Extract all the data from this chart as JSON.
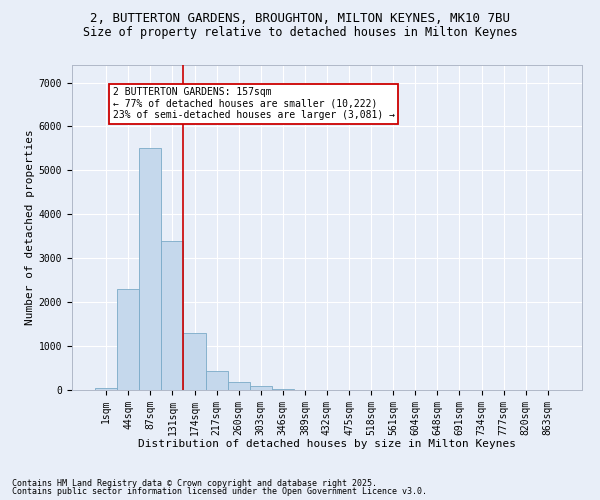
{
  "title_line1": "2, BUTTERTON GARDENS, BROUGHTON, MILTON KEYNES, MK10 7BU",
  "title_line2": "Size of property relative to detached houses in Milton Keynes",
  "xlabel": "Distribution of detached houses by size in Milton Keynes",
  "ylabel": "Number of detached properties",
  "categories": [
    "1sqm",
    "44sqm",
    "87sqm",
    "131sqm",
    "174sqm",
    "217sqm",
    "260sqm",
    "303sqm",
    "346sqm",
    "389sqm",
    "432sqm",
    "475sqm",
    "518sqm",
    "561sqm",
    "604sqm",
    "648sqm",
    "691sqm",
    "734sqm",
    "777sqm",
    "820sqm",
    "863sqm"
  ],
  "values": [
    50,
    2300,
    5500,
    3400,
    1300,
    430,
    180,
    80,
    20,
    5,
    2,
    0,
    0,
    0,
    0,
    0,
    0,
    0,
    0,
    0,
    0
  ],
  "bar_color": "#c5d8ec",
  "bar_edge_color": "#7aaac8",
  "vline_color": "#cc0000",
  "vline_x_index": 3.5,
  "annotation_text": "2 BUTTERTON GARDENS: 157sqm\n← 77% of detached houses are smaller (10,222)\n23% of semi-detached houses are larger (3,081) →",
  "annotation_box_edge": "#cc0000",
  "background_color": "#e8eef8",
  "plot_bg_color": "#e8eef8",
  "yticks": [
    0,
    1000,
    2000,
    3000,
    4000,
    5000,
    6000,
    7000
  ],
  "ylim": [
    0,
    7400
  ],
  "footer_line1": "Contains HM Land Registry data © Crown copyright and database right 2025.",
  "footer_line2": "Contains public sector information licensed under the Open Government Licence v3.0.",
  "title_fontsize": 9,
  "subtitle_fontsize": 8.5,
  "axis_label_fontsize": 8,
  "tick_fontsize": 7,
  "annotation_fontsize": 7,
  "footer_fontsize": 6
}
